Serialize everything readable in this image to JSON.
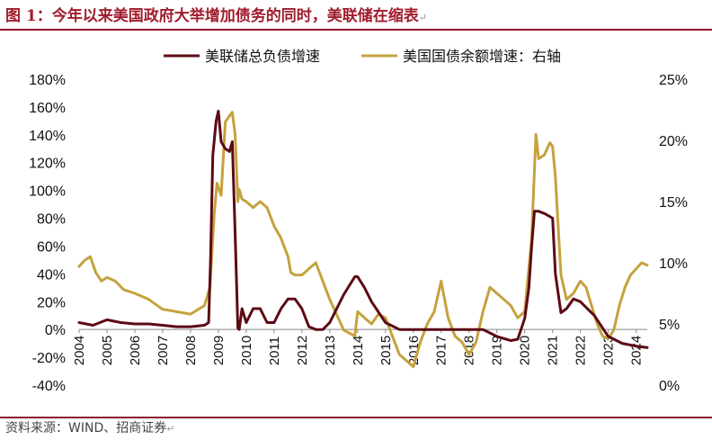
{
  "header": {
    "title": "图 1：今年以来美国政府大举增加债务的同时，美联储在缩表",
    "return_mark": "↵"
  },
  "footer": {
    "source": "资料来源：WIND、招商证券",
    "return_mark": "↵"
  },
  "colors": {
    "title": "#a01c2c",
    "rule": "#8b1a2a",
    "fed_series": "#5c0a14",
    "treasury_series": "#c5a23e"
  },
  "chart_data": {
    "type": "line",
    "title": "",
    "legend": [
      "美联储总负债增速",
      "美国国债余额增速：右轴"
    ],
    "legend_position": "top-center",
    "x_ticks": [
      "2004",
      "2005",
      "2006",
      "2007",
      "2008",
      "2009",
      "2010",
      "2011",
      "2012",
      "2013",
      "2014",
      "2015",
      "2016",
      "2017",
      "2018",
      "2019",
      "2020",
      "2021",
      "2022",
      "2023",
      "2024"
    ],
    "x_range": [
      2004.0,
      2024.4
    ],
    "y_left": {
      "ticks": [
        "180%",
        "160%",
        "140%",
        "120%",
        "100%",
        "80%",
        "60%",
        "40%",
        "20%",
        "0%",
        "-20%",
        "-40%"
      ],
      "range": [
        -40,
        180
      ]
    },
    "y_right": {
      "ticks": [
        "25%",
        "20%",
        "15%",
        "10%",
        "5%",
        "0%"
      ],
      "range": [
        0,
        25
      ]
    },
    "series": [
      {
        "name": "美联储总负债增速",
        "axis": "left",
        "x": [
          2004.0,
          2004.5,
          2005.0,
          2005.5,
          2006.0,
          2006.5,
          2007.0,
          2007.5,
          2008.0,
          2008.5,
          2008.65,
          2008.72,
          2008.8,
          2008.92,
          2009.0,
          2009.1,
          2009.25,
          2009.4,
          2009.5,
          2009.6,
          2009.7,
          2009.75,
          2009.85,
          2010.0,
          2010.25,
          2010.5,
          2010.75,
          2011.0,
          2011.25,
          2011.5,
          2011.75,
          2012.0,
          2012.25,
          2012.5,
          2012.75,
          2013.0,
          2013.5,
          2013.9,
          2014.0,
          2014.25,
          2014.5,
          2015.0,
          2015.5,
          2016.0,
          2016.5,
          2017.0,
          2017.5,
          2018.0,
          2018.5,
          2019.0,
          2019.5,
          2019.75,
          2020.0,
          2020.15,
          2020.25,
          2020.35,
          2020.5,
          2020.75,
          2021.0,
          2021.1,
          2021.3,
          2021.5,
          2021.75,
          2022.0,
          2022.5,
          2023.0,
          2023.5,
          2024.0,
          2024.4
        ],
        "values": [
          5,
          3,
          7,
          5,
          4,
          4,
          3,
          2,
          2,
          3,
          5,
          50,
          125,
          150,
          157,
          135,
          130,
          128,
          135,
          70,
          1,
          0,
          15,
          5,
          15,
          15,
          5,
          5,
          15,
          22,
          22,
          15,
          2,
          0,
          0,
          5,
          25,
          38,
          38,
          30,
          20,
          5,
          0,
          0,
          0,
          0,
          0,
          0,
          0,
          -5,
          -8,
          -7,
          8,
          30,
          60,
          85,
          85,
          83,
          80,
          40,
          12,
          15,
          22,
          20,
          10,
          -5,
          -10,
          -12,
          -13
        ]
      },
      {
        "name": "美国国债余额增速：右轴",
        "axis": "right",
        "x": [
          2004.0,
          2004.2,
          2004.4,
          2004.6,
          2004.8,
          2005.0,
          2005.3,
          2005.6,
          2006.0,
          2006.5,
          2007.0,
          2007.5,
          2008.0,
          2008.5,
          2008.7,
          2008.85,
          2008.95,
          2009.1,
          2009.25,
          2009.4,
          2009.5,
          2009.6,
          2009.7,
          2009.75,
          2009.85,
          2010.0,
          2010.25,
          2010.5,
          2010.75,
          2011.0,
          2011.25,
          2011.5,
          2011.6,
          2011.75,
          2012.0,
          2012.5,
          2013.0,
          2013.5,
          2013.9,
          2014.0,
          2014.25,
          2014.5,
          2014.75,
          2015.0,
          2015.25,
          2015.5,
          2015.75,
          2016.0,
          2016.25,
          2016.5,
          2016.75,
          2017.0,
          2017.25,
          2017.5,
          2017.75,
          2018.0,
          2018.25,
          2018.5,
          2018.75,
          2019.0,
          2019.25,
          2019.5,
          2019.75,
          2020.0,
          2020.25,
          2020.4,
          2020.5,
          2020.7,
          2020.9,
          2021.0,
          2021.1,
          2021.3,
          2021.5,
          2021.75,
          2022.0,
          2022.2,
          2022.4,
          2022.6,
          2022.8,
          2023.0,
          2023.2,
          2023.4,
          2023.6,
          2023.8,
          2024.0,
          2024.2,
          2024.4
        ],
        "values": [
          9.7,
          10.2,
          10.5,
          9.2,
          8.5,
          8.8,
          8.5,
          7.8,
          7.5,
          7.0,
          6.2,
          6.0,
          5.8,
          6.5,
          8.0,
          14.0,
          16.5,
          15.5,
          21.5,
          22.0,
          22.3,
          20.5,
          15.0,
          16.0,
          15.2,
          15.0,
          14.5,
          15.0,
          14.5,
          13.0,
          12.0,
          10.5,
          9.2,
          9.0,
          9.0,
          10.0,
          7.0,
          4.5,
          4.0,
          6.0,
          5.5,
          5.0,
          5.8,
          5.5,
          4.0,
          2.5,
          2.0,
          1.5,
          3.5,
          5.0,
          6.0,
          8.5,
          5.5,
          4.0,
          3.5,
          2.5,
          3.5,
          6.0,
          8.0,
          7.5,
          7.0,
          6.5,
          5.5,
          6.0,
          12.0,
          20.5,
          18.5,
          18.8,
          19.8,
          19.5,
          17.0,
          9.0,
          7.0,
          7.5,
          8.5,
          8.0,
          6.5,
          5.0,
          4.0,
          3.8,
          4.5,
          6.5,
          8.0,
          9.0,
          9.5,
          10.0,
          9.8
        ]
      }
    ]
  }
}
